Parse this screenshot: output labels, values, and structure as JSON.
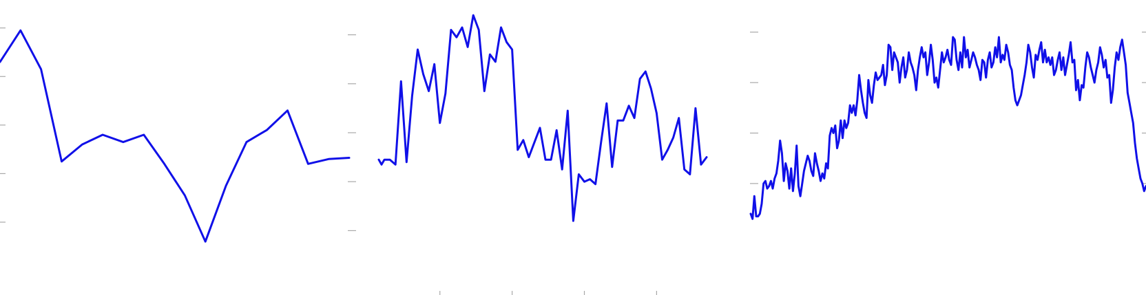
{
  "chart_data": [
    {
      "type": "line",
      "grid": false,
      "legend": "none",
      "color": "#1010e8",
      "xlim": [
        0,
        17
      ],
      "ylim": [
        0,
        100
      ],
      "y_ticks": [
        15,
        35,
        55,
        75,
        95
      ],
      "x_ticks": [],
      "x": [
        0,
        1,
        2,
        3,
        4,
        5,
        6,
        7,
        8,
        9,
        10,
        11,
        12,
        13,
        14,
        15,
        16,
        17
      ],
      "values": [
        81,
        94,
        78,
        40,
        47,
        51,
        48,
        51,
        39,
        26,
        7,
        30,
        48,
        53,
        61,
        39,
        41,
        41.5
      ]
    },
    {
      "type": "line",
      "grid": false,
      "legend": "none",
      "color": "#1010e8",
      "xlim": [
        0,
        59
      ],
      "ylim": [
        0,
        100
      ],
      "y_ticks": [
        10,
        30,
        50,
        70,
        90
      ],
      "x_ticks": [
        11,
        24,
        37,
        50
      ],
      "x": [
        0,
        0.5,
        1,
        2,
        3,
        4,
        5,
        6,
        7,
        8,
        9,
        10,
        11,
        12,
        13,
        14,
        15,
        16,
        17,
        18,
        19,
        20,
        21,
        22,
        23,
        24,
        25,
        26,
        27,
        28,
        29,
        30,
        31,
        32,
        33,
        34,
        35,
        36,
        37,
        38,
        39,
        40,
        41,
        42,
        43,
        44,
        45,
        46,
        47,
        48,
        49,
        50,
        51,
        52,
        53,
        54,
        55,
        56,
        57,
        58,
        59
      ],
      "values": [
        39,
        37,
        39,
        39,
        37,
        71,
        38,
        65,
        84,
        74,
        67,
        78,
        54,
        66,
        92,
        89,
        93,
        85,
        98,
        92,
        67,
        82,
        79,
        93,
        87,
        84,
        43,
        47,
        40,
        46,
        52,
        39,
        39,
        51,
        35,
        59,
        14,
        33,
        30,
        31,
        29,
        46,
        62,
        36,
        55,
        55,
        61,
        56,
        72,
        75,
        68,
        58,
        39,
        43,
        48,
        56,
        35,
        33,
        60,
        37,
        40
      ]
    },
    {
      "type": "line",
      "grid": false,
      "legend": "none",
      "color": "#1010e8",
      "xlim": [
        0,
        215
      ],
      "ylim": [
        0,
        100
      ],
      "y_ticks": [
        30,
        50,
        70,
        90
      ],
      "x_ticks": [],
      "x": [
        0,
        1,
        2,
        3,
        4,
        5,
        6,
        7,
        8,
        9,
        10,
        11,
        12,
        13,
        14,
        15,
        16,
        17,
        18,
        19,
        20,
        21,
        22,
        23,
        24,
        25,
        26,
        27,
        28,
        29,
        30,
        31,
        32,
        33,
        34,
        35,
        36,
        37,
        38,
        39,
        40,
        41,
        42,
        43,
        44,
        45,
        46,
        47,
        48,
        49,
        50,
        51,
        52,
        53,
        54,
        55,
        56,
        57,
        58,
        59,
        60,
        61,
        62,
        63,
        64,
        65,
        66,
        67,
        68,
        69,
        70,
        71,
        72,
        73,
        74,
        75,
        76,
        77,
        78,
        79,
        80,
        81,
        82,
        83,
        84,
        85,
        86,
        87,
        88,
        89,
        90,
        91,
        92,
        93,
        94,
        95,
        96,
        97,
        98,
        99,
        100,
        101,
        102,
        103,
        104,
        105,
        106,
        107,
        108,
        109,
        110,
        111,
        112,
        113,
        114,
        115,
        116,
        117,
        118,
        119,
        120,
        121,
        122,
        123,
        124,
        125,
        126,
        127,
        128,
        129,
        130,
        131,
        132,
        133,
        134,
        135,
        136,
        137,
        138,
        139,
        140,
        141,
        142,
        143,
        144,
        145,
        146,
        147,
        148,
        149,
        150,
        151,
        152,
        153,
        154,
        155,
        156,
        157,
        158,
        159,
        160,
        161,
        162,
        163,
        164,
        165,
        166,
        167,
        168,
        169,
        170,
        171,
        172,
        173,
        174,
        175,
        176,
        177,
        178,
        179,
        180,
        181,
        182,
        183,
        184,
        185,
        186,
        187,
        188,
        189,
        190,
        191,
        192,
        193,
        194,
        195,
        196,
        197,
        198,
        199,
        200,
        201,
        202,
        203,
        204,
        205,
        206,
        207,
        208,
        209,
        210,
        211,
        212,
        213,
        214,
        215
      ],
      "values": [
        18,
        16,
        25,
        17,
        17,
        18,
        22,
        30,
        31,
        28,
        29,
        31,
        28,
        32,
        34,
        39,
        47,
        42,
        31,
        38,
        35,
        28,
        36,
        27,
        34,
        45,
        29,
        25,
        30,
        35,
        38,
        41,
        39,
        35,
        33,
        42,
        38,
        35,
        31,
        34,
        32,
        38,
        36,
        49,
        52,
        50,
        53,
        44,
        47,
        55,
        48,
        55,
        52,
        54,
        61,
        58,
        61,
        57,
        63,
        73,
        67,
        62,
        58,
        56,
        71,
        65,
        62,
        69,
        74,
        71,
        72,
        73,
        77,
        69,
        73,
        85,
        84,
        75,
        82,
        80,
        78,
        70,
        76,
        80,
        72,
        75,
        82,
        78,
        76,
        73,
        67,
        75,
        80,
        84,
        80,
        82,
        73,
        78,
        85,
        79,
        70,
        72,
        68,
        75,
        82,
        78,
        80,
        83,
        79,
        77,
        88,
        87,
        79,
        75,
        82,
        76,
        88,
        80,
        83,
        76,
        79,
        82,
        80,
        77,
        75,
        71,
        79,
        78,
        72,
        79,
        82,
        76,
        78,
        84,
        80,
        88,
        78,
        81,
        79,
        85,
        82,
        77,
        75,
        68,
        63,
        61,
        63,
        65,
        69,
        73,
        78,
        85,
        82,
        76,
        72,
        81,
        79,
        83,
        86,
        78,
        83,
        78,
        80,
        77,
        80,
        73,
        75,
        79,
        82,
        75,
        80,
        73,
        77,
        81,
        86,
        78,
        79,
        67,
        71,
        63,
        69,
        68,
        76,
        82,
        80,
        76,
        73,
        70,
        75,
        78,
        84,
        81,
        76,
        79,
        72,
        73,
        62,
        67,
        76,
        82,
        79,
        84,
        87,
        82,
        77,
        66,
        62,
        58,
        54,
        46,
        40,
        36,
        32,
        30,
        27,
        29
      ]
    }
  ]
}
